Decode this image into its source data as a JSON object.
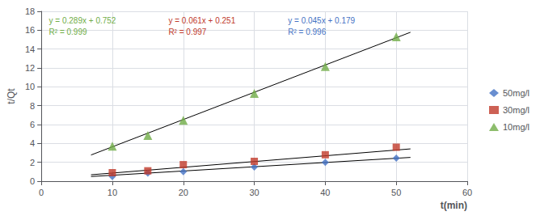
{
  "chart_data": {
    "type": "scatter",
    "xlabel": "t(min)",
    "ylabel": "t/Qt",
    "x": [
      10,
      15,
      20,
      30,
      40,
      50
    ],
    "series": [
      {
        "name": "50mg/l",
        "color": "#4472C4",
        "marker": "diamond",
        "values": [
          0.5,
          0.85,
          1.0,
          1.5,
          2.0,
          2.45
        ],
        "trend": {
          "x": [
            7,
            52
          ],
          "values": [
            0.494,
            2.519
          ],
          "color": "#000000"
        },
        "annotations": [
          "y = 0.045x + 0.179",
          "R² = 0.996"
        ]
      },
      {
        "name": "30mg/l",
        "color": "#C0392B",
        "marker": "square",
        "values": [
          0.9,
          1.1,
          1.75,
          2.1,
          2.8,
          3.6
        ],
        "trend": {
          "x": [
            7,
            52
          ],
          "values": [
            0.678,
            3.423
          ],
          "color": "#000000"
        },
        "annotations": [
          "y = 0.061x + 0.251",
          "R² = 0.997"
        ]
      },
      {
        "name": "10mg/l",
        "color": "#70AD47",
        "marker": "triangle",
        "values": [
          3.7,
          4.85,
          6.45,
          9.3,
          12.15,
          15.3
        ],
        "trend": {
          "x": [
            7,
            52
          ],
          "values": [
            2.775,
            15.78
          ],
          "color": "#000000"
        },
        "annotations": [
          "y = 0.289x + 0.752",
          "R² = 0.999"
        ]
      }
    ],
    "xlim": [
      0,
      60
    ],
    "ylim": [
      0,
      18
    ],
    "xticks": [
      0,
      10,
      20,
      30,
      40,
      50,
      60
    ],
    "yticks": [
      0,
      2,
      4,
      6,
      8,
      10,
      12,
      14,
      16,
      18
    ],
    "grid": true,
    "legend": "right"
  }
}
